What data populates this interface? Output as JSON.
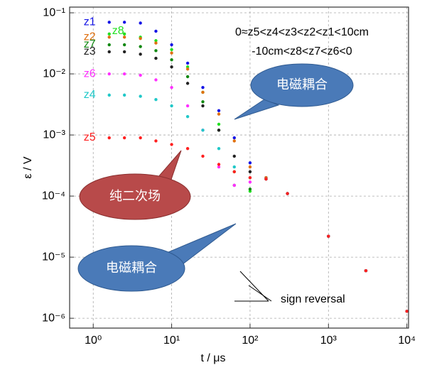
{
  "chart_data": {
    "type": "scatter",
    "log_x": true,
    "log_y": true,
    "grid": true,
    "xlabel": "t / μs",
    "ylabel": "ε / V",
    "xlim": [
      0.5,
      10500
    ],
    "ylim": [
      6.9e-07,
      0.124
    ],
    "xticks": [
      {
        "value": 1,
        "label": "10⁰"
      },
      {
        "value": 10,
        "label": "10¹"
      },
      {
        "value": 100,
        "label": "10²"
      },
      {
        "value": 1000,
        "label": "10³"
      },
      {
        "value": 10000,
        "label": "10⁴"
      }
    ],
    "yticks": [
      {
        "value": 1e-06,
        "label": "10⁻⁶"
      },
      {
        "value": 1e-05,
        "label": "10⁻⁵"
      },
      {
        "value": 0.0001,
        "label": "10⁻⁴"
      },
      {
        "value": 0.001,
        "label": "10⁻³"
      },
      {
        "value": 0.01,
        "label": "10⁻²"
      },
      {
        "value": 0.1,
        "label": "10⁻¹"
      }
    ],
    "x": [
      1.6,
      2.5,
      4,
      6.3,
      10,
      16,
      25,
      40,
      63,
      100,
      160,
      300,
      1000,
      3000,
      10000
    ],
    "series": [
      {
        "name": "z1",
        "color": "#1515e6",
        "values": [
          0.07,
          0.07,
          0.068,
          0.05,
          0.03,
          0.015,
          0.006,
          0.0025,
          0.0009,
          0.00035,
          0.0002,
          0.00011,
          2.2e-05,
          6e-06,
          1.3e-06
        ]
      },
      {
        "name": "z8",
        "color": "#22e022",
        "values": [
          0.045,
          0.045,
          0.04,
          0.035,
          0.025,
          0.013,
          0.005,
          0.0015,
          0.00025,
          0.00012,
          0.00019,
          0.00011,
          2.2e-05,
          6e-06,
          1.3e-06
        ]
      },
      {
        "name": "z2",
        "color": "#e07010",
        "values": [
          0.04,
          0.04,
          0.038,
          0.032,
          0.022,
          0.012,
          0.005,
          0.0022,
          0.0008,
          0.0003,
          0.0002,
          0.00011,
          2.2e-05,
          6e-06,
          1.3e-06
        ]
      },
      {
        "name": "z7",
        "color": "#118811",
        "values": [
          0.03,
          0.03,
          0.028,
          0.024,
          0.017,
          0.009,
          0.0035,
          0.0012,
          0.00015,
          0.00013,
          0.00019,
          0.00011,
          2.2e-05,
          6e-06,
          1.3e-06
        ]
      },
      {
        "name": "z3",
        "color": "#222222",
        "values": [
          0.023,
          0.023,
          0.021,
          0.018,
          0.013,
          0.007,
          0.003,
          0.0012,
          0.00045,
          0.00025,
          0.00019,
          0.00011,
          2.2e-05,
          6e-06,
          1.3e-06
        ]
      },
      {
        "name": "z6",
        "color": "#ff30ff",
        "values": [
          0.01,
          0.01,
          0.0095,
          0.008,
          0.006,
          0.003,
          0.0012,
          0.0003,
          0.00015,
          0.00017,
          0.00019,
          0.00011,
          2.2e-05,
          6e-06,
          1.3e-06
        ]
      },
      {
        "name": "z4",
        "color": "#20c8c8",
        "values": [
          0.0045,
          0.0045,
          0.0043,
          0.0038,
          0.003,
          0.002,
          0.0012,
          0.0006,
          0.0003,
          0.0002,
          0.00019,
          0.00011,
          2.2e-05,
          6e-06,
          1.3e-06
        ]
      },
      {
        "name": "z5",
        "color": "#ff2020",
        "values": [
          0.0009,
          0.0009,
          0.0009,
          0.0008,
          0.0007,
          0.0006,
          0.00045,
          0.00033,
          0.00025,
          0.0002,
          0.00019,
          0.00011,
          2.2e-05,
          6e-06,
          1.3e-06
        ]
      }
    ],
    "annotations": [
      "0≈z5<z4<z3<z2<z1<10cm",
      "-10cm<z8<z7<z6<0",
      "电磁耦合",
      "纯二次场",
      "电磁耦合",
      "sign reversal"
    ]
  }
}
